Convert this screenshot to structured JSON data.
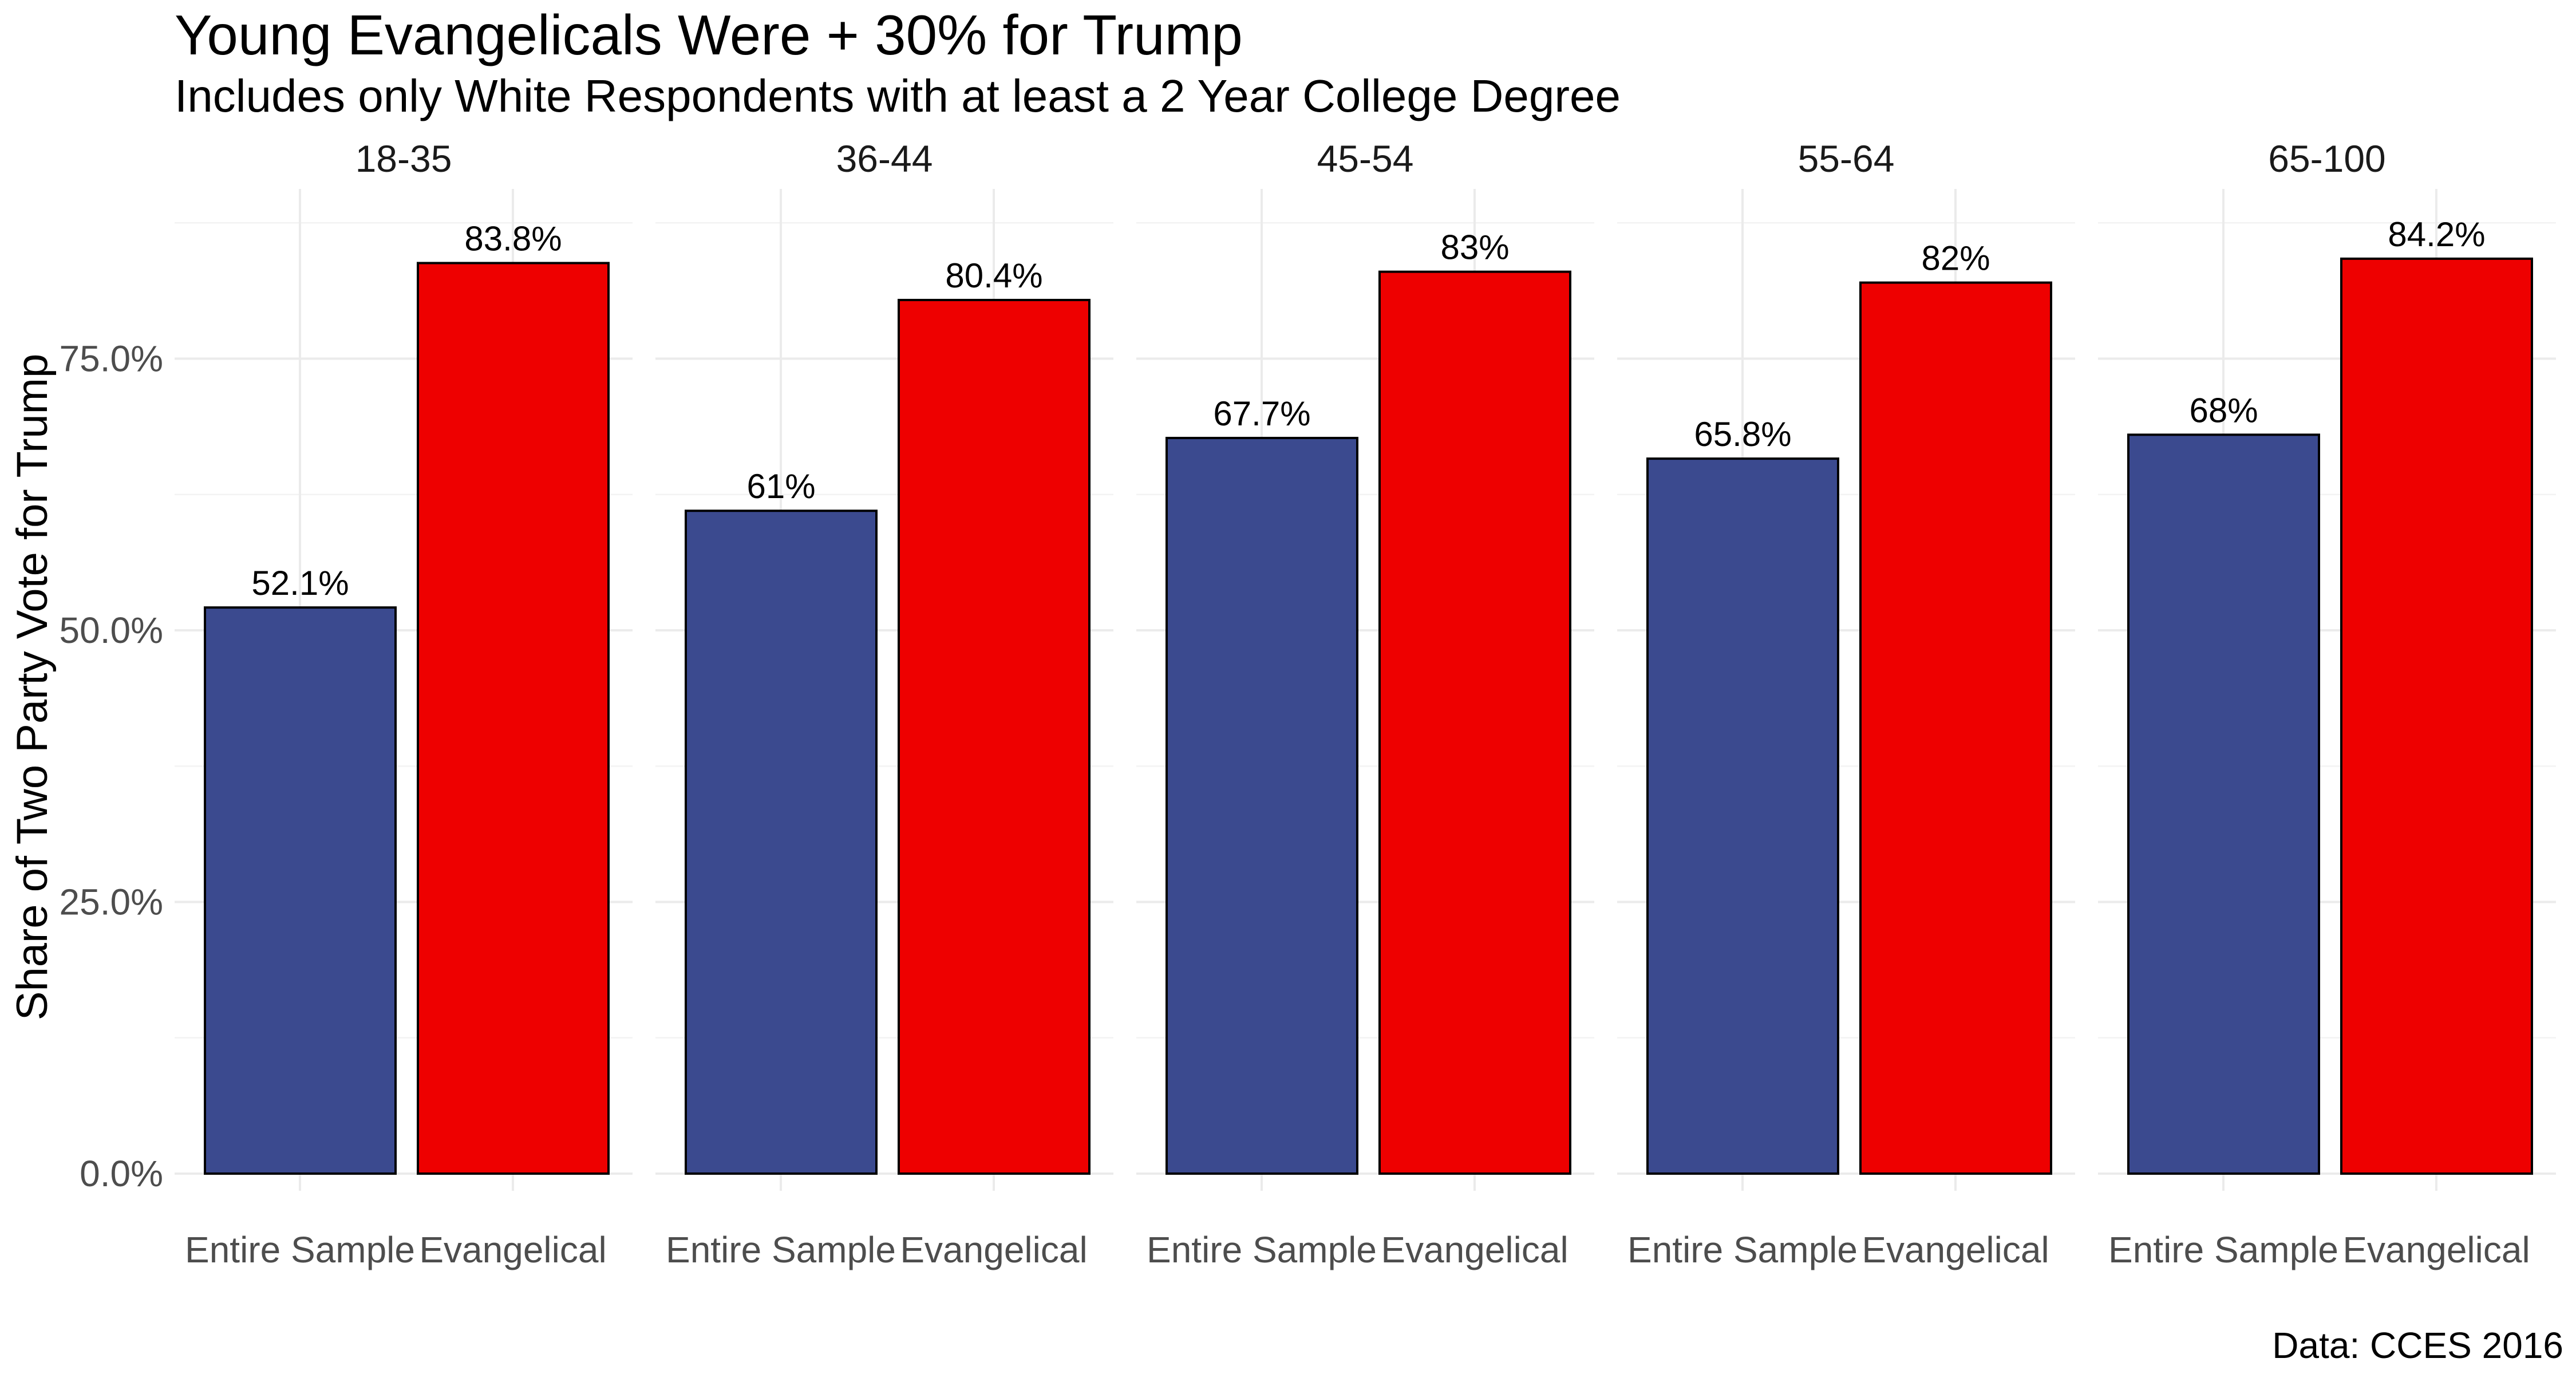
{
  "chart_data": {
    "type": "bar",
    "title": "Young Evangelicals Were + 30% for Trump",
    "subtitle": "Includes only White Respondents with at least a 2 Year College Degree",
    "ylabel": "Share of Two Party Vote for Trump",
    "caption": "Data: CCES 2016",
    "ylim": [
      0,
      0.9
    ],
    "yticks": [
      0,
      0.25,
      0.5,
      0.75
    ],
    "ytick_labels": [
      "0.0%",
      "25.0%",
      "50.0%",
      "75.0%"
    ],
    "grid": true,
    "categories": [
      "Entire Sample",
      "Evangelical"
    ],
    "colors": {
      "Entire Sample": "#3b4a8f",
      "Evangelical": "#ee0000"
    },
    "facets": [
      {
        "label": "18-35",
        "values": [
          0.521,
          0.838
        ],
        "labels": [
          "52.1%",
          "83.8%"
        ]
      },
      {
        "label": "36-44",
        "values": [
          0.61,
          0.804
        ],
        "labels": [
          "61%",
          "80.4%"
        ]
      },
      {
        "label": "45-54",
        "values": [
          0.677,
          0.83
        ],
        "labels": [
          "67.7%",
          "83%"
        ]
      },
      {
        "label": "55-64",
        "values": [
          0.658,
          0.82
        ],
        "labels": [
          "65.8%",
          "82%"
        ]
      },
      {
        "label": "65-100",
        "values": [
          0.68,
          0.842
        ],
        "labels": [
          "68%",
          "84.2%"
        ]
      }
    ]
  }
}
